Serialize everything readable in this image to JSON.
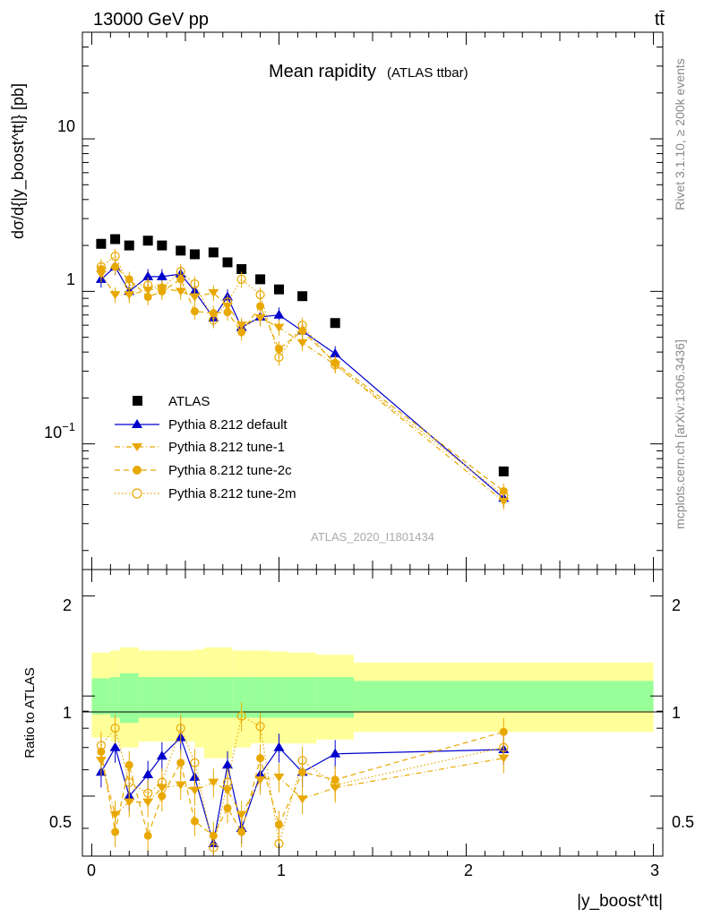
{
  "header": {
    "energy_label": "13000 GeV pp",
    "process_label": "tt̄",
    "plot_title": "Mean rapidity",
    "plot_subtitle": "(ATLAS ttbar)",
    "analysis_id": "ATLAS_2020_I1801434",
    "rivet_label": "Rivet 3.1.10, ≥ 200k events",
    "site_label": "mcplots.cern.ch [arXiv:1306.3436]"
  },
  "axes": {
    "main_y_label": "dσ/d{|y_boost^tt|} [pb]",
    "ratio_y_label": "Ratio to ATLAS",
    "x_label": "|y_boost^tt|",
    "main_y_ticks": [
      "10⁻¹",
      "1",
      "10"
    ],
    "ratio_y_ticks": [
      "0.5",
      "1",
      "2"
    ],
    "x_ticks": [
      "0",
      "1",
      "2",
      "3"
    ]
  },
  "colors": {
    "atlas": "#000000",
    "default": "#0000cc",
    "tune": "#e8a800",
    "band_inner": "#99ff99",
    "band_outer": "#ffff99"
  },
  "legend": {
    "entries": [
      {
        "label": "ATLAS",
        "key": "atlas"
      },
      {
        "label": "Pythia 8.212 default",
        "key": "default"
      },
      {
        "label": "Pythia 8.212 tune-1",
        "key": "tune1"
      },
      {
        "label": "Pythia 8.212 tune-2c",
        "key": "tune2c"
      },
      {
        "label": "Pythia 8.212 tune-2m",
        "key": "tune2m"
      }
    ]
  },
  "chart_data": [
    {
      "type": "scatter",
      "title": "Mean rapidity",
      "xlabel": "|y_boost^tt|",
      "ylabel": "dσ/d{|y_boost^tt|} [pb]",
      "xlim": [
        -0.05,
        3.05
      ],
      "ylim": [
        0.015,
        50
      ],
      "yscale": "log",
      "x": [
        0.05,
        0.125,
        0.2,
        0.3,
        0.375,
        0.475,
        0.55,
        0.65,
        0.725,
        0.8,
        0.9,
        1.0,
        1.125,
        1.3,
        2.2
      ],
      "series": [
        {
          "name": "ATLAS",
          "key": "atlas",
          "values": [
            2.05,
            2.2,
            2.0,
            2.15,
            2.0,
            1.85,
            1.75,
            1.8,
            1.55,
            1.4,
            1.2,
            1.03,
            0.93,
            0.62,
            0.066
          ]
        },
        {
          "name": "Pythia 8.212 default",
          "key": "default",
          "values": [
            1.2,
            1.45,
            1.0,
            1.25,
            1.25,
            1.3,
            1.0,
            0.67,
            0.92,
            0.58,
            0.68,
            0.7,
            0.55,
            0.39,
            0.044
          ]
        },
        {
          "name": "Pythia 8.212 tune-1",
          "key": "tune1",
          "values": [
            1.3,
            0.95,
            0.95,
            1.02,
            1.05,
            1.0,
            0.92,
            0.98,
            0.8,
            0.6,
            0.67,
            0.58,
            0.46,
            0.33,
            0.042
          ]
        },
        {
          "name": "Pythia 8.212 tune-2c",
          "key": "tune2c",
          "values": [
            1.4,
            1.45,
            1.2,
            0.92,
            1.0,
            1.2,
            0.74,
            0.72,
            0.73,
            0.54,
            0.8,
            0.42,
            0.55,
            0.34,
            0.049
          ]
        },
        {
          "name": "Pythia 8.212 tune-2m",
          "key": "tune2m",
          "values": [
            1.45,
            1.7,
            1.1,
            1.1,
            1.05,
            1.35,
            1.12,
            0.65,
            0.85,
            1.2,
            0.95,
            0.37,
            0.6,
            0.33,
            0.046
          ]
        }
      ]
    },
    {
      "type": "scatter",
      "ylabel": "Ratio to ATLAS",
      "xlabel": "|y_boost^tt|",
      "xlim": [
        -0.05,
        3.05
      ],
      "ylim": [
        0.33,
        2.4
      ],
      "yscale": "log",
      "bands": {
        "edges": [
          0.0,
          0.1,
          0.15,
          0.25,
          0.35,
          0.4,
          0.55,
          0.6,
          0.75,
          0.85,
          0.95,
          1.05,
          1.2,
          1.4,
          3.0
        ],
        "inner_lo": [
          0.88,
          0.86,
          0.83,
          0.86,
          0.86,
          0.86,
          0.86,
          0.86,
          0.86,
          0.86,
          0.86,
          0.86,
          0.86,
          0.9
        ],
        "inner_hi": [
          1.13,
          1.14,
          1.17,
          1.14,
          1.14,
          1.14,
          1.14,
          1.14,
          1.14,
          1.14,
          1.14,
          1.14,
          1.14,
          1.11
        ],
        "outer_lo": [
          0.75,
          0.73,
          0.7,
          0.73,
          0.73,
          0.73,
          0.7,
          0.65,
          0.7,
          0.72,
          0.72,
          0.72,
          0.74,
          0.78
        ],
        "outer_hi": [
          1.35,
          1.37,
          1.4,
          1.37,
          1.37,
          1.37,
          1.38,
          1.4,
          1.37,
          1.37,
          1.36,
          1.35,
          1.33,
          1.26
        ]
      },
      "series": [
        {
          "name": "Pythia 8.212 default",
          "key": "default",
          "values": [
            0.59,
            0.7,
            0.5,
            0.58,
            0.66,
            0.75,
            0.57,
            0.36,
            0.62,
            0.4,
            0.58,
            0.7,
            0.59,
            0.67,
            0.69
          ]
        },
        {
          "name": "Pythia 8.212 tune-1",
          "key": "tune1",
          "values": [
            0.64,
            0.44,
            0.48,
            0.48,
            0.53,
            0.54,
            0.52,
            0.55,
            0.52,
            0.44,
            0.56,
            0.57,
            0.49,
            0.53,
            0.65
          ]
        },
        {
          "name": "Pythia 8.212 tune-2c",
          "key": "tune2c",
          "values": [
            0.68,
            0.39,
            0.62,
            0.38,
            0.5,
            0.63,
            0.42,
            0.38,
            0.46,
            0.39,
            0.65,
            0.41,
            0.59,
            0.56,
            0.78
          ]
        },
        {
          "name": "Pythia 8.212 tune-2m",
          "key": "tune2m",
          "values": [
            0.71,
            0.8,
            0.55,
            0.51,
            0.55,
            0.8,
            0.63,
            0.35,
            0.55,
            0.87,
            0.81,
            0.36,
            0.64,
            0.54,
            0.7
          ]
        }
      ]
    }
  ]
}
